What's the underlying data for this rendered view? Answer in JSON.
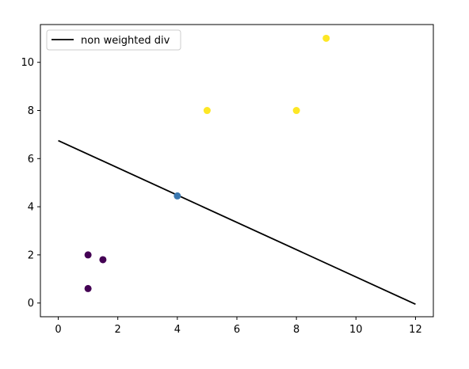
{
  "chart_data": {
    "type": "scatter",
    "title": "",
    "xlabel": "",
    "ylabel": "",
    "xlim": [
      -0.6,
      12.6
    ],
    "ylim": [
      -0.57,
      11.57
    ],
    "x_ticks": [
      0,
      2,
      4,
      6,
      8,
      10,
      12
    ],
    "y_ticks": [
      0,
      2,
      4,
      6,
      8,
      10
    ],
    "grid": false,
    "legend": {
      "placement": "top-left",
      "entries": [
        {
          "label": "non weighted div",
          "color": "#000000",
          "marker": "line"
        }
      ]
    },
    "line": {
      "name": "non weighted div",
      "color": "#000000",
      "x": [
        0,
        12
      ],
      "y": [
        6.75,
        -0.05
      ]
    },
    "points": [
      {
        "x": 1.0,
        "y": 2.0,
        "color": "#440154"
      },
      {
        "x": 1.5,
        "y": 1.8,
        "color": "#440154"
      },
      {
        "x": 1.0,
        "y": 0.6,
        "color": "#440154"
      },
      {
        "x": 4.0,
        "y": 4.45,
        "color": "#3b78b0"
      },
      {
        "x": 5.0,
        "y": 8.0,
        "color": "#fde725"
      },
      {
        "x": 8.0,
        "y": 8.0,
        "color": "#fde725"
      },
      {
        "x": 9.0,
        "y": 11.0,
        "color": "#fde725"
      }
    ]
  }
}
